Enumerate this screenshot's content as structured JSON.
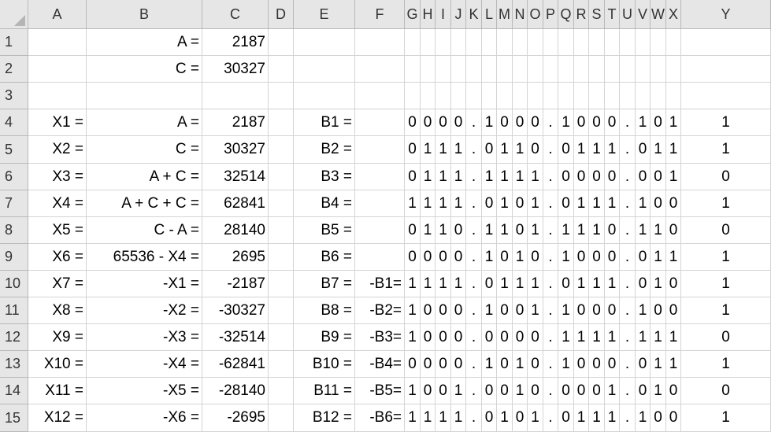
{
  "columns": [
    "A",
    "B",
    "C",
    "D",
    "E",
    "F",
    "G",
    "H",
    "I",
    "J",
    "K",
    "L",
    "M",
    "N",
    "O",
    "P",
    "Q",
    "R",
    "S",
    "T",
    "U",
    "V",
    "W",
    "X",
    "Y"
  ],
  "rows": [
    {
      "n": "1",
      "a": "",
      "b": "A =",
      "c": "2187",
      "e": "",
      "f": "",
      "bits": "",
      "sign": ""
    },
    {
      "n": "2",
      "a": "",
      "b": "C =",
      "c": "30327",
      "e": "",
      "f": "",
      "bits": "",
      "sign": ""
    },
    {
      "n": "3",
      "a": "",
      "b": "",
      "c": "",
      "e": "",
      "f": "",
      "bits": "",
      "sign": ""
    },
    {
      "n": "4",
      "a": "X1 =",
      "b": "A =",
      "c": "2187",
      "e": "B1 =",
      "f": "",
      "bits": "0000.1000.1000.1011"
    },
    {
      "n": "5",
      "a": "X2 =",
      "b": "C =",
      "c": "30327",
      "e": "B2 =",
      "f": "",
      "bits": "0111.0110.0111.0111"
    },
    {
      "n": "6",
      "a": "X3 =",
      "b": "A + C =",
      "c": "32514",
      "e": "B3 =",
      "f": "",
      "bits": "0111.1111.0000.0010"
    },
    {
      "n": "7",
      "a": "X4 =",
      "b": "A + C + C =",
      "c": "62841",
      "e": "B4 =",
      "f": "",
      "bits": "1111.0101.0111.1001"
    },
    {
      "n": "8",
      "a": "X5 =",
      "b": "C - A =",
      "c": "28140",
      "e": "B5 =",
      "f": "",
      "bits": "0110.1101.1110.1100"
    },
    {
      "n": "9",
      "a": "X6 =",
      "b": "65536 - X4 =",
      "c": "2695",
      "e": "B6 =",
      "f": "",
      "bits": "0000.1010.1000.0111"
    },
    {
      "n": "10",
      "a": "X7 =",
      "b": "-X1 =",
      "c": "-2187",
      "e": "B7 =",
      "f": "-B1=",
      "bits": "1111.0111.0111.0101"
    },
    {
      "n": "11",
      "a": "X8 =",
      "b": "-X2 =",
      "c": "-30327",
      "e": "B8 =",
      "f": "-B2=",
      "bits": "1000.1001.1000.1001"
    },
    {
      "n": "12",
      "a": "X9 =",
      "b": "-X3 =",
      "c": "-32514",
      "e": "B9 =",
      "f": "-B3=",
      "bits": "1000.0000.1111.1110"
    },
    {
      "n": "13",
      "a": "X10 =",
      "b": "-X4 =",
      "c": "-62841",
      "e": "B10 =",
      "f": "-B4=",
      "bits": "0000.1010.1000.0111"
    },
    {
      "n": "14",
      "a": "X11 =",
      "b": "-X5 =",
      "c": "-28140",
      "e": "B11 =",
      "f": "-B5=",
      "bits": "1001.0010.0001.0100"
    },
    {
      "n": "15",
      "a": "X12 =",
      "b": "-X6 =",
      "c": "-2695",
      "e": "B12 =",
      "f": "-B6=",
      "bits": "1111.0101.0111.1001"
    }
  ]
}
